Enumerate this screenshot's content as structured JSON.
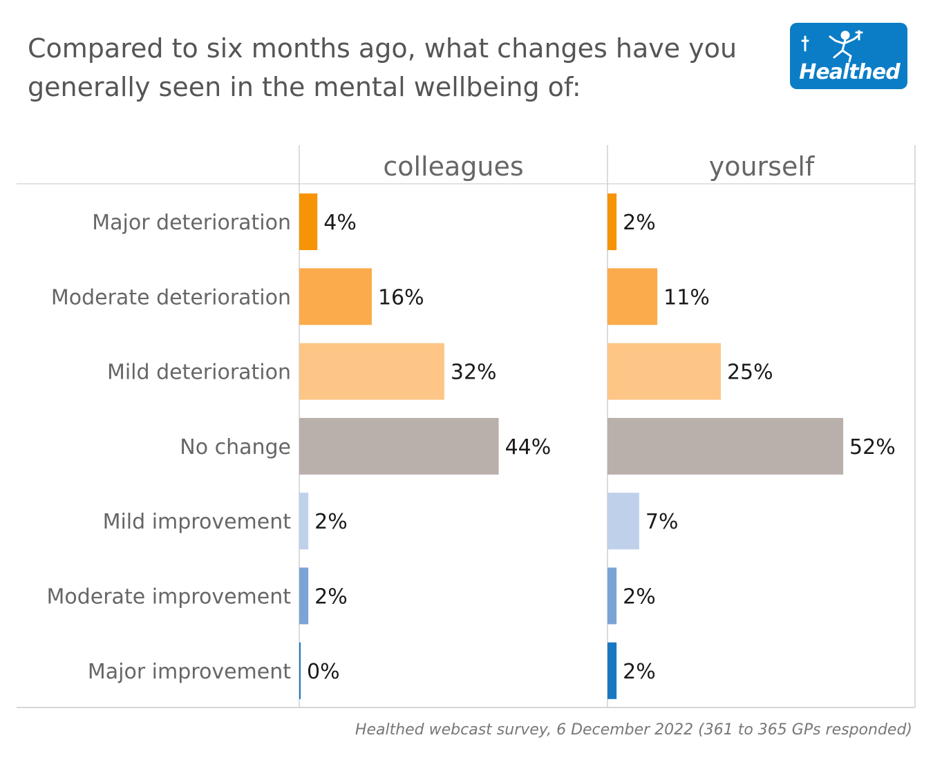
{
  "title": "Compared to six months ago, what changes have you\ngenerally seen in the mental wellbeing of:",
  "logo_text": "Healthed",
  "footnote": "Healthed webcast survey, 6 December 2022 (361 to 365 GPs responded)",
  "chart_data": {
    "type": "bar",
    "orientation": "horizontal",
    "categories": [
      "Major deterioration",
      "Moderate deterioration",
      "Mild deterioration",
      "No change",
      "Mild improvement",
      "Moderate improvement",
      "Major improvement"
    ],
    "colors": [
      "#f79307",
      "#fbab4b",
      "#fdc586",
      "#bab0ab",
      "#bfd1ea",
      "#7ba3d6",
      "#1a78c2"
    ],
    "panels": [
      {
        "name": "colleagues",
        "values": [
          4,
          16,
          32,
          44,
          2,
          2,
          0
        ]
      },
      {
        "name": "yourself",
        "values": [
          2,
          11,
          25,
          52,
          7,
          2,
          2
        ]
      }
    ],
    "value_suffix": "%",
    "xlim": [
      0,
      68
    ],
    "grid": false
  }
}
